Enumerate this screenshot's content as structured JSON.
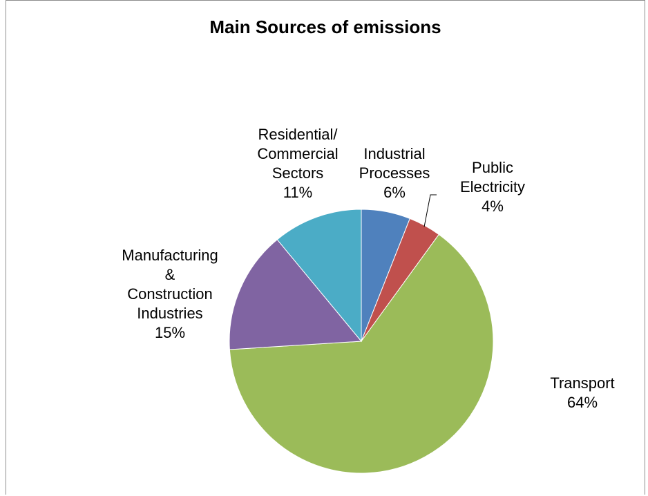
{
  "chart_data": {
    "type": "pie",
    "title": "Main Sources of  emissions",
    "start_angle_deg": 0,
    "direction": "clockwise",
    "slices": [
      {
        "name": "Industrial Processes",
        "label_lines": [
          "Industrial",
          "Processes"
        ],
        "value": 6,
        "value_label": "6%",
        "color": "#4F81BD"
      },
      {
        "name": "Public Electricity",
        "label_lines": [
          "Public",
          "Electricity"
        ],
        "value": 4,
        "value_label": "4%",
        "color": "#C0504D"
      },
      {
        "name": "Transport",
        "label_lines": [
          "Transport"
        ],
        "value": 64,
        "value_label": "64%",
        "color": "#9BBB59"
      },
      {
        "name": "Manufacturing & Construction Industries",
        "label_lines": [
          "Manufacturing",
          "&",
          "Construction",
          "Industries"
        ],
        "value": 15,
        "value_label": "15%",
        "color": "#8064A2"
      },
      {
        "name": "Residential/ Commercial Sectors",
        "label_lines": [
          "Residential/",
          "Commercial",
          "Sectors"
        ],
        "value": 11,
        "value_label": "11%",
        "color": "#4BACC6"
      }
    ],
    "legend": "none"
  }
}
